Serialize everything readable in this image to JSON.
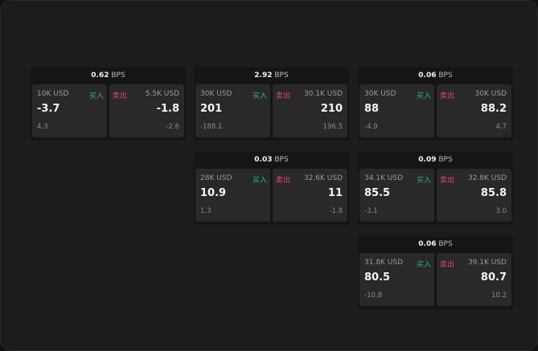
{
  "unit_label": "BPS",
  "buy_label": "买入",
  "sell_label": "卖出",
  "colors": {
    "buy": "#2fb86a",
    "sell": "#e0466e"
  },
  "widgets": [
    {
      "spread": "0.62",
      "buy": {
        "size": "10K USD",
        "price": "-3.7",
        "change": "4.3"
      },
      "sell": {
        "size": "5.5K USD",
        "price": "-1.8",
        "change": "-2.6"
      }
    },
    {
      "spread": "2.92",
      "buy": {
        "size": "30K USD",
        "price": "201",
        "change": "-188.1"
      },
      "sell": {
        "size": "30.1K USD",
        "price": "210",
        "change": "196.5"
      }
    },
    {
      "spread": "0.06",
      "buy": {
        "size": "30K USD",
        "price": "88",
        "change": "-4.9"
      },
      "sell": {
        "size": "30K USD",
        "price": "88.2",
        "change": "4.7"
      }
    },
    {
      "spread": "0.03",
      "buy": {
        "size": "28K USD",
        "price": "10.9",
        "change": "1.3"
      },
      "sell": {
        "size": "32.6K USD",
        "price": "11",
        "change": "-1.8"
      }
    },
    {
      "spread": "0.09",
      "buy": {
        "size": "34.1K USD",
        "price": "85.5",
        "change": "-3.1"
      },
      "sell": {
        "size": "32.8K USD",
        "price": "85.8",
        "change": "3.0"
      }
    },
    {
      "spread": "0.06",
      "buy": {
        "size": "31.8K USD",
        "price": "80.5",
        "change": "-10.8"
      },
      "sell": {
        "size": "39.1K USD",
        "price": "80.7",
        "change": "10.2"
      }
    }
  ]
}
